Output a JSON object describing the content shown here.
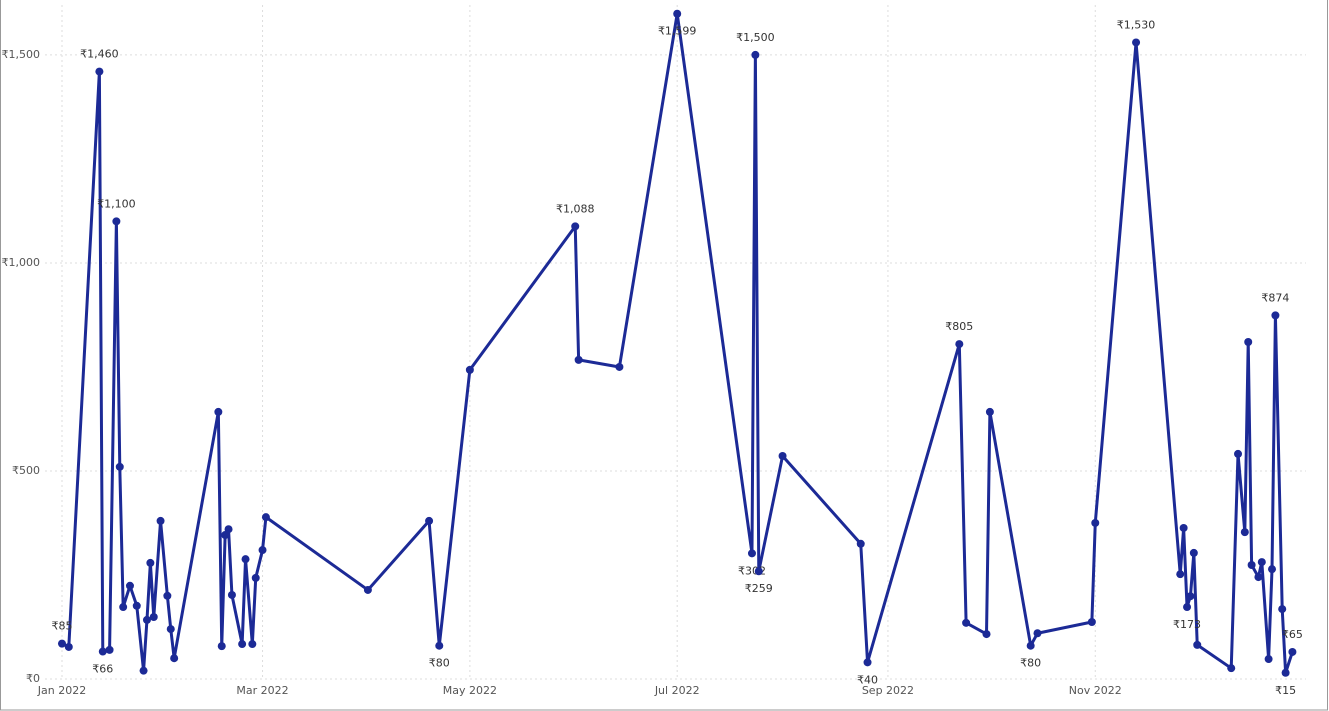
{
  "chart_data": {
    "type": "line",
    "x": [
      0,
      2,
      11,
      12,
      14,
      16,
      17,
      18,
      20,
      22,
      24,
      25,
      26,
      27,
      29,
      31,
      32,
      33,
      46,
      47,
      48,
      49,
      50,
      53,
      54,
      56,
      57,
      59,
      60,
      90,
      108,
      111,
      120,
      151,
      152,
      164,
      181,
      203,
      204,
      205,
      212,
      235,
      237,
      264,
      266,
      272,
      273,
      285,
      287,
      303,
      304,
      316,
      329,
      330,
      331,
      332,
      333,
      334,
      344,
      346,
      348,
      349,
      350,
      352,
      353,
      355,
      356,
      357,
      359,
      360,
      362
    ],
    "series": [
      {
        "color": "#1c2a96",
        "values": [
          85,
          77,
          1460,
          66,
          70,
          1100,
          510,
          173,
          224,
          176,
          20,
          142,
          279,
          149,
          380,
          200,
          120,
          50,
          642,
          79,
          346,
          360,
          202,
          84,
          288,
          84,
          243,
          310,
          389,
          214,
          380,
          80,
          743,
          1088,
          767,
          750,
          1599,
          302,
          1500,
          259,
          536,
          325,
          40,
          805,
          135,
          108,
          642,
          80,
          110,
          137,
          375,
          1530,
          252,
          363,
          173,
          199,
          303,
          82,
          26,
          541,
          353,
          810,
          274,
          245,
          281,
          48,
          264,
          874,
          168,
          15,
          65
        ],
        "value_labels": [
          "₹85",
          null,
          "₹1,460",
          "₹66",
          null,
          "₹1,100",
          null,
          null,
          null,
          null,
          null,
          null,
          null,
          null,
          null,
          null,
          null,
          null,
          null,
          null,
          null,
          null,
          null,
          null,
          null,
          null,
          null,
          null,
          null,
          null,
          null,
          "₹80",
          null,
          "₹1,088",
          null,
          null,
          "₹1,599",
          "₹302",
          "₹1,500",
          "₹259",
          null,
          null,
          "₹40",
          "₹805",
          null,
          null,
          null,
          "₹80",
          null,
          null,
          null,
          "₹1,530",
          null,
          null,
          "₹173",
          null,
          null,
          null,
          null,
          null,
          null,
          null,
          null,
          null,
          null,
          null,
          null,
          "₹874",
          null,
          "₹15",
          "₹65"
        ]
      }
    ],
    "xlim": [
      -5,
      366
    ],
    "xticks": [
      {
        "value": 0,
        "label": "Jan 2022"
      },
      {
        "value": 59,
        "label": "Mar 2022"
      },
      {
        "value": 120,
        "label": "May 2022"
      },
      {
        "value": 181,
        "label": "Jul 2022"
      },
      {
        "value": 243,
        "label": "Sep 2022"
      },
      {
        "value": 304,
        "label": "Nov 2022"
      }
    ],
    "ylim": [
      0,
      1620
    ],
    "yticks": [
      {
        "value": 0,
        "label": "₹0"
      },
      {
        "value": 500,
        "label": "₹500"
      },
      {
        "value": 1000,
        "label": "₹1,000"
      },
      {
        "value": 1500,
        "label": "₹1,500"
      }
    ],
    "grid": true
  }
}
